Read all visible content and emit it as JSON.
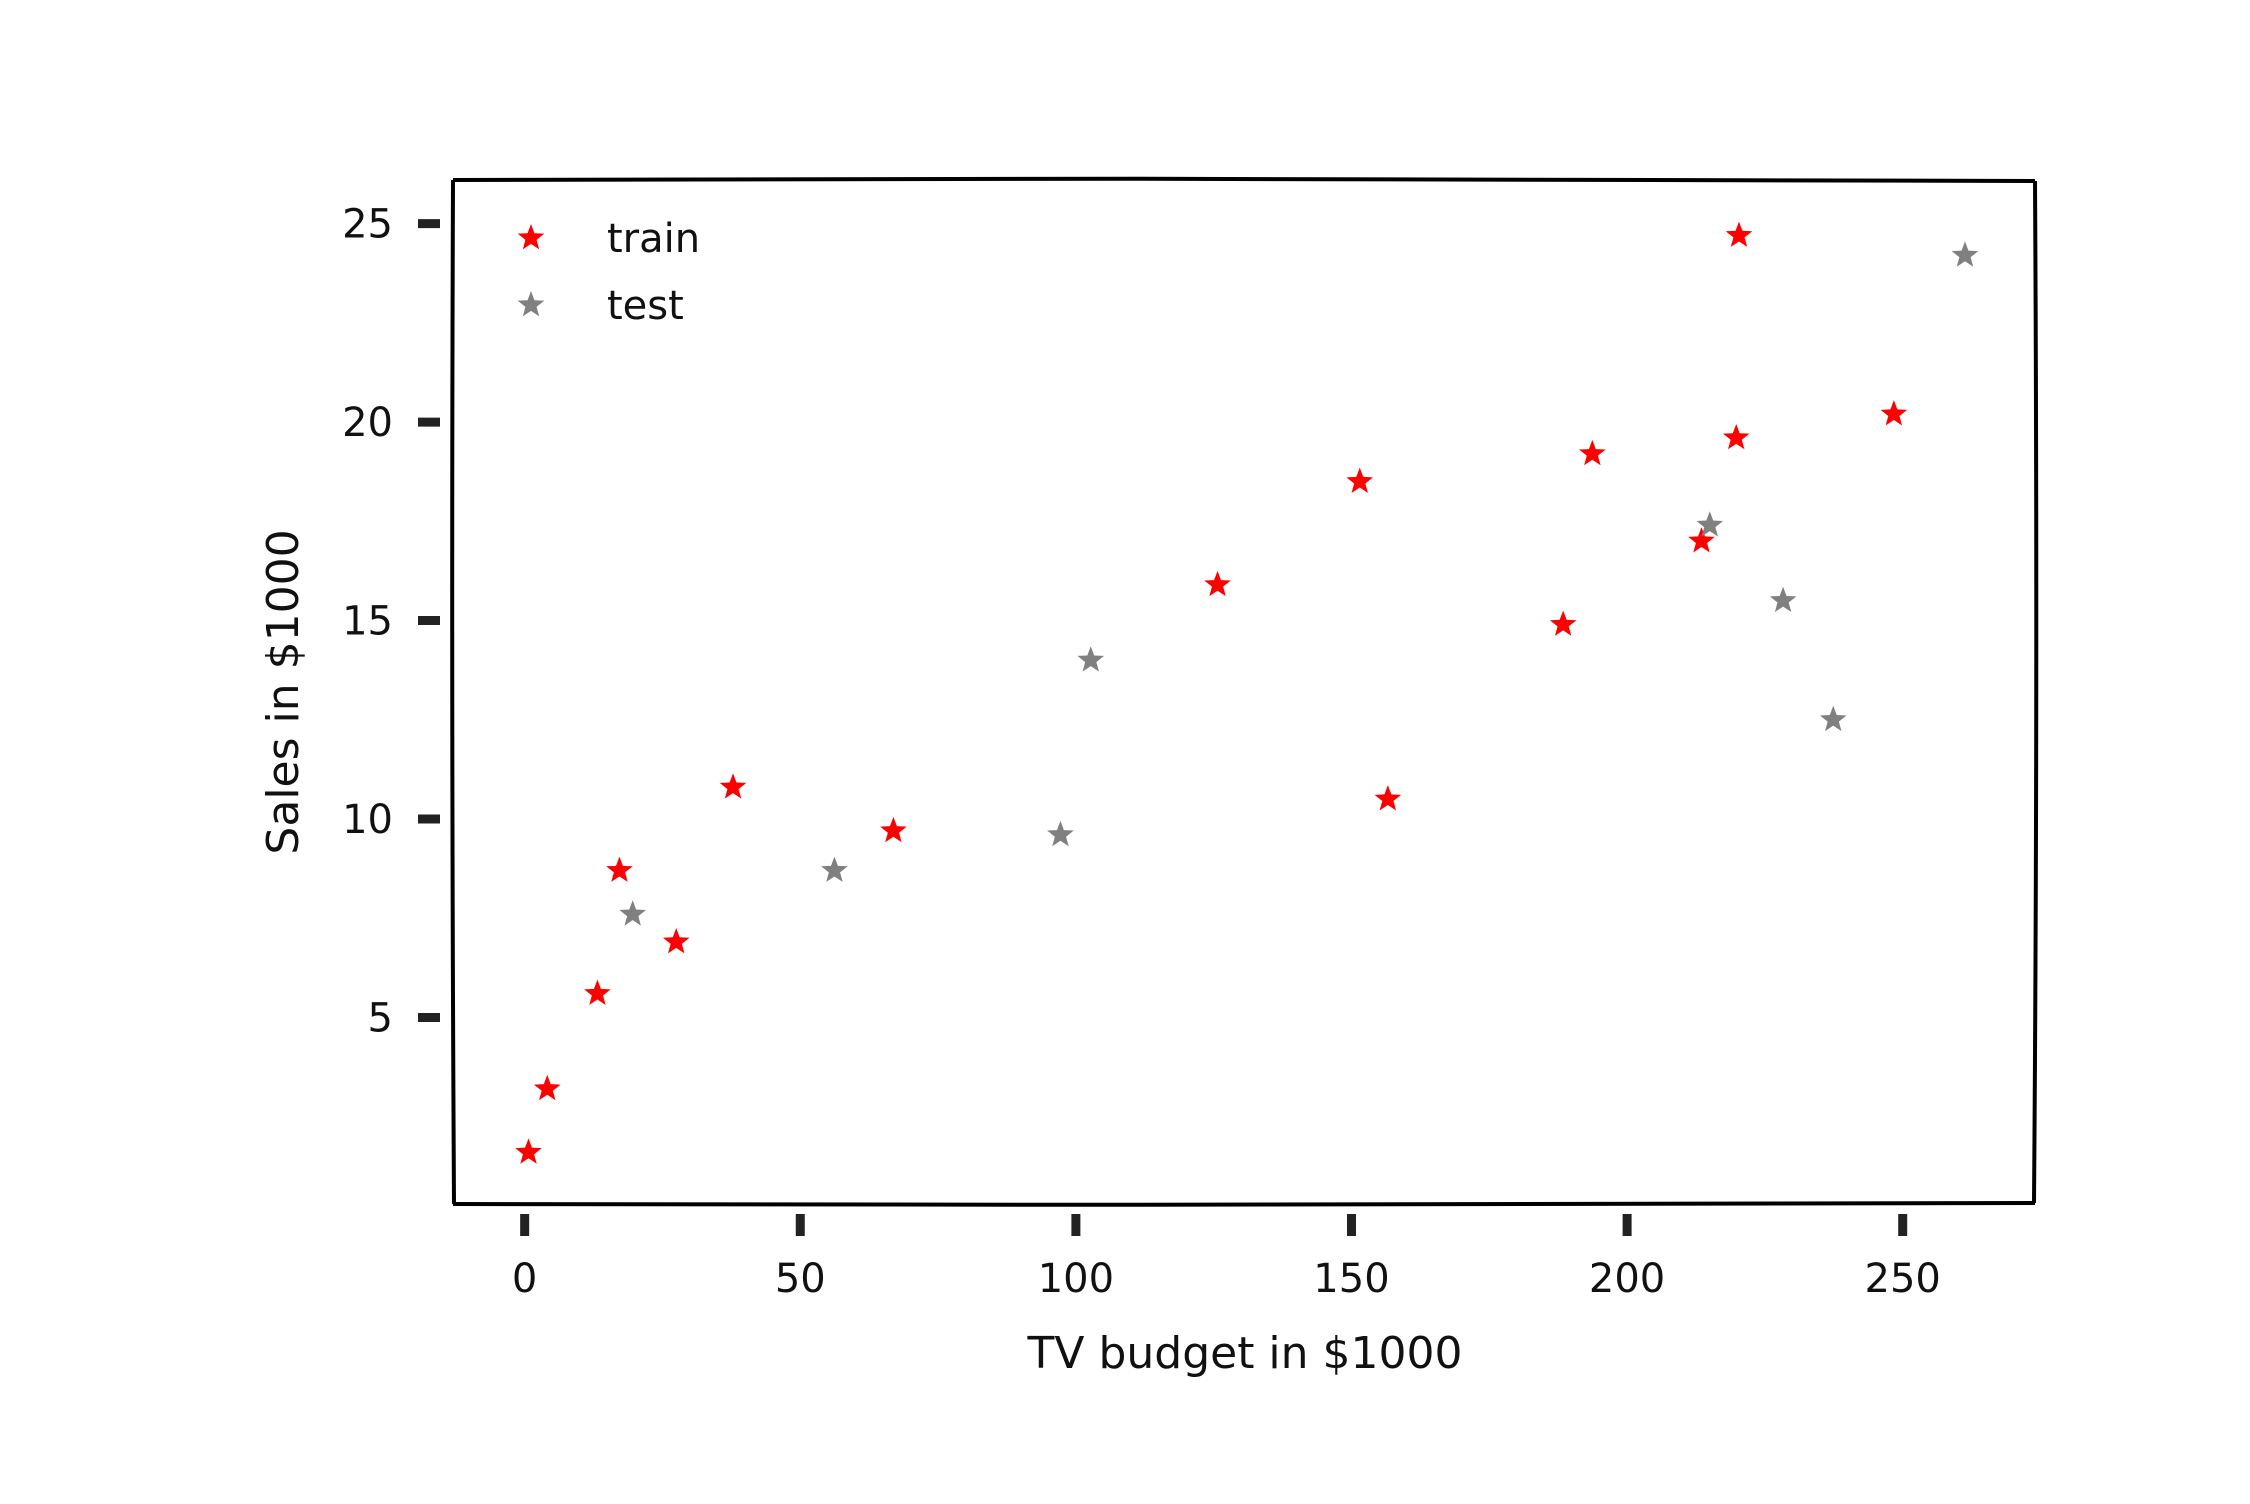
{
  "chart_data": {
    "type": "scatter",
    "title": "",
    "xlabel": "TV budget in $1000",
    "ylabel": "Sales in $1000",
    "xlim": [
      -13,
      274
    ],
    "ylim": [
      0.3,
      26.1
    ],
    "xticks": [
      0,
      50,
      100,
      150,
      200,
      250
    ],
    "yticks": [
      5,
      10,
      15,
      20,
      25
    ],
    "grid": false,
    "legend": {
      "position": "top-left",
      "entries": [
        "train",
        "test"
      ]
    },
    "marker": "star",
    "series": [
      {
        "name": "train",
        "color": "#ff0000",
        "points": [
          [
            0.7,
            1.6
          ],
          [
            4.1,
            3.2
          ],
          [
            13.2,
            5.6
          ],
          [
            17.2,
            8.7
          ],
          [
            27.5,
            6.9
          ],
          [
            37.8,
            10.8
          ],
          [
            66.9,
            9.7
          ],
          [
            125.7,
            15.9
          ],
          [
            151.5,
            18.5
          ],
          [
            156.6,
            10.5
          ],
          [
            188.4,
            14.9
          ],
          [
            193.7,
            19.2
          ],
          [
            213.5,
            17.0
          ],
          [
            219.8,
            19.6
          ],
          [
            220.3,
            24.7
          ],
          [
            248.4,
            20.2
          ]
        ]
      },
      {
        "name": "test",
        "color": "#808080",
        "points": [
          [
            19.6,
            7.6
          ],
          [
            56.2,
            8.7
          ],
          [
            97.2,
            9.6
          ],
          [
            102.7,
            14.0
          ],
          [
            215.0,
            17.4
          ],
          [
            228.3,
            15.5
          ],
          [
            237.4,
            12.5
          ],
          [
            261.3,
            24.2
          ]
        ]
      }
    ]
  }
}
